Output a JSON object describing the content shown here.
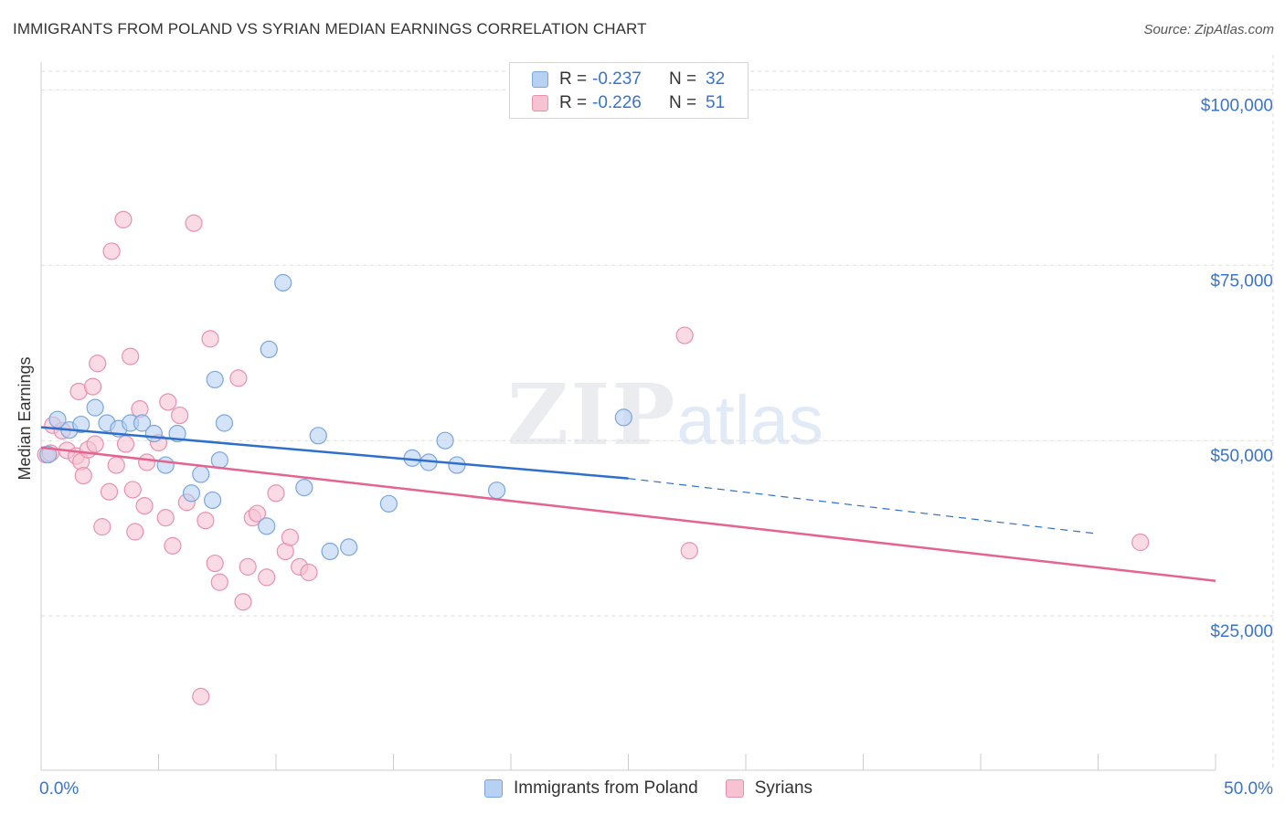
{
  "header": {
    "title": "IMMIGRANTS FROM POLAND VS SYRIAN MEDIAN EARNINGS CORRELATION CHART",
    "source": "Source: ZipAtlas.com"
  },
  "watermark": {
    "zip": "ZIP",
    "atlas": "atlas"
  },
  "legend": {
    "rows": [
      {
        "r_label": "R =",
        "r_value": "-0.237",
        "n_label": "N =",
        "n_value": "32"
      },
      {
        "r_label": "R =",
        "r_value": "-0.226",
        "n_label": "N =",
        "n_value": "51"
      }
    ]
  },
  "bottom_legend": {
    "poland": "Immigrants from Poland",
    "syrians": "Syrians"
  },
  "colors": {
    "poland_fill": "#b7d1f2",
    "poland_stroke": "#7aa6dc",
    "poland_line": "#2f6fcc",
    "syrian_fill": "#f7c3d3",
    "syrian_stroke": "#e891ac",
    "syrian_line": "#e4648f",
    "axis_label": "#3a74c9",
    "grid": "#dddddd"
  },
  "chart_data": {
    "type": "scatter",
    "title": "IMMIGRANTS FROM POLAND VS SYRIAN MEDIAN EARNINGS CORRELATION CHART",
    "xlabel": "",
    "ylabel": "Median Earnings",
    "xlim": [
      0,
      50
    ],
    "ylim": [
      3000,
      105000
    ],
    "x_tick_labels": [
      "0.0%",
      "50.0%"
    ],
    "y_ticks": [
      25000,
      50000,
      75000,
      100000
    ],
    "y_tick_labels": [
      "$25,000",
      "$50,000",
      "$75,000",
      "$100,000"
    ],
    "grid": true,
    "series": [
      {
        "name": "Immigrants from Poland",
        "r": -0.237,
        "n": 32,
        "trend": {
          "x": [
            0,
            25
          ],
          "y": [
            51900,
            44600
          ]
        },
        "trend_dashed": {
          "x": [
            25,
            45
          ],
          "y": [
            44600,
            36700
          ]
        },
        "points": [
          [
            0.3,
            48000
          ],
          [
            0.7,
            53000
          ],
          [
            1.2,
            51500
          ],
          [
            1.7,
            52300
          ],
          [
            2.3,
            54700
          ],
          [
            2.8,
            52500
          ],
          [
            3.3,
            51700
          ],
          [
            3.8,
            52500
          ],
          [
            4.3,
            52500
          ],
          [
            4.8,
            51000
          ],
          [
            5.3,
            46500
          ],
          [
            5.8,
            51000
          ],
          [
            6.8,
            45200
          ],
          [
            6.4,
            42500
          ],
          [
            7.3,
            41500
          ],
          [
            7.4,
            58700
          ],
          [
            7.6,
            47200
          ],
          [
            7.8,
            52500
          ],
          [
            9.7,
            63000
          ],
          [
            9.6,
            37800
          ],
          [
            10.3,
            72500
          ],
          [
            11.2,
            43300
          ],
          [
            11.8,
            50700
          ],
          [
            12.3,
            34200
          ],
          [
            13.1,
            34800
          ],
          [
            14.8,
            41000
          ],
          [
            15.8,
            47500
          ],
          [
            16.5,
            46900
          ],
          [
            17.2,
            50000
          ],
          [
            17.7,
            46500
          ],
          [
            19.4,
            42900
          ],
          [
            24.8,
            53300
          ]
        ]
      },
      {
        "name": "Syrians",
        "r": -0.226,
        "n": 51,
        "trend": {
          "x": [
            0,
            50
          ],
          "y": [
            49000,
            30000
          ]
        },
        "points": [
          [
            0.2,
            48000
          ],
          [
            0.5,
            52200
          ],
          [
            0.9,
            51400
          ],
          [
            1.1,
            48600
          ],
          [
            1.5,
            47800
          ],
          [
            1.6,
            57000
          ],
          [
            1.7,
            47000
          ],
          [
            1.8,
            45000
          ],
          [
            2.0,
            48700
          ],
          [
            2.2,
            57700
          ],
          [
            2.3,
            49500
          ],
          [
            2.4,
            61000
          ],
          [
            2.6,
            37700
          ],
          [
            2.9,
            42700
          ],
          [
            3.0,
            77000
          ],
          [
            3.2,
            46500
          ],
          [
            3.5,
            81500
          ],
          [
            3.6,
            49500
          ],
          [
            3.8,
            62000
          ],
          [
            3.9,
            43000
          ],
          [
            4.0,
            37000
          ],
          [
            4.2,
            54500
          ],
          [
            4.4,
            40700
          ],
          [
            4.5,
            46900
          ],
          [
            5.0,
            49700
          ],
          [
            5.3,
            39000
          ],
          [
            5.4,
            55500
          ],
          [
            5.6,
            35000
          ],
          [
            5.9,
            53600
          ],
          [
            6.2,
            41200
          ],
          [
            6.5,
            81000
          ],
          [
            6.8,
            13500
          ],
          [
            7.0,
            38600
          ],
          [
            7.2,
            64500
          ],
          [
            7.4,
            32500
          ],
          [
            7.6,
            29800
          ],
          [
            8.4,
            58900
          ],
          [
            8.6,
            27000
          ],
          [
            8.8,
            32000
          ],
          [
            9.0,
            39000
          ],
          [
            9.2,
            39600
          ],
          [
            9.6,
            30500
          ],
          [
            10.0,
            42500
          ],
          [
            10.4,
            34200
          ],
          [
            10.6,
            36200
          ],
          [
            11.0,
            32000
          ],
          [
            11.4,
            31200
          ],
          [
            27.4,
            65000
          ],
          [
            27.6,
            34300
          ],
          [
            46.8,
            35500
          ],
          [
            0.4,
            48200
          ]
        ]
      }
    ]
  }
}
